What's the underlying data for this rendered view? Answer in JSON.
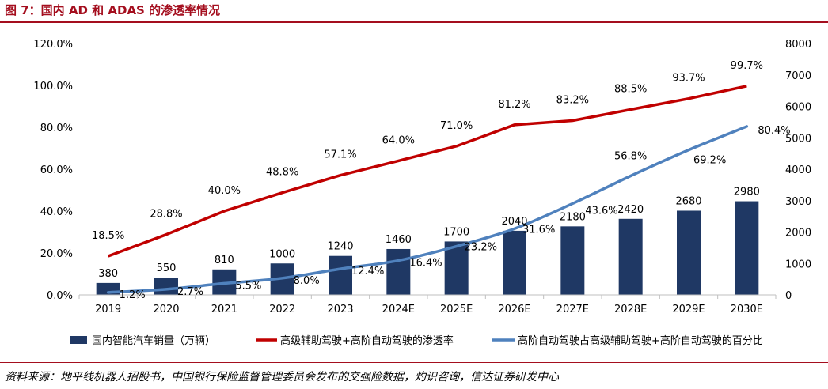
{
  "figure": {
    "title": "图 7：国内 AD 和 ADAS 的渗透率情况",
    "source": "资料来源：地平线机器人招股书，中国银行保险监督管理委员会发布的交强险数据，灼识咨询，信达证券研发中心"
  },
  "chart_data": {
    "type": "bar",
    "categories": [
      "2019",
      "2020",
      "2021",
      "2022",
      "2023",
      "2024E",
      "2025E",
      "2026E",
      "2027E",
      "2028E",
      "2029E",
      "2030E"
    ],
    "y_left": {
      "min": 0,
      "max": 120,
      "ticks": [
        "0.0%",
        "20.0%",
        "40.0%",
        "60.0%",
        "80.0%",
        "100.0%",
        "120.0%"
      ]
    },
    "y_right": {
      "min": 0,
      "max": 8000,
      "ticks": [
        "0",
        "1000",
        "2000",
        "3000",
        "4000",
        "5000",
        "6000",
        "7000",
        "8000"
      ]
    },
    "legend": [
      "国内智能汽车销量（万辆）",
      "高级辅助驾驶+高阶自动驾驶的渗透率",
      "高阶自动驾驶占高级辅助驾驶+高阶自动驾驶的百分比"
    ],
    "series": [
      {
        "name": "国内智能汽车销量（万辆）",
        "type": "bar",
        "axis": "right",
        "color": "#1f3864",
        "values": [
          380,
          550,
          810,
          1000,
          1240,
          1460,
          1700,
          2040,
          2180,
          2420,
          2680,
          2980
        ],
        "labels": [
          "380",
          "550",
          "810",
          "1000",
          "1240",
          "1460",
          "1700",
          "2040",
          "2180",
          "2420",
          "2680",
          "2980"
        ]
      },
      {
        "name": "高级辅助驾驶+高阶自动驾驶的渗透率",
        "type": "line",
        "axis": "left",
        "color": "#c00000",
        "values": [
          18.5,
          28.8,
          40.0,
          48.8,
          57.1,
          64.0,
          71.0,
          81.2,
          83.2,
          88.5,
          93.7,
          99.7
        ],
        "labels": [
          "18.5%",
          "28.8%",
          "40.0%",
          "48.8%",
          "57.1%",
          "64.0%",
          "71.0%",
          "81.2%",
          "83.2%",
          "88.5%",
          "93.7%",
          "99.7%"
        ]
      },
      {
        "name": "高阶自动驾驶占高级辅助驾驶+高阶自动驾驶的百分比",
        "type": "line",
        "axis": "left",
        "color": "#4f81bd",
        "values": [
          1.2,
          2.7,
          5.5,
          8.0,
          12.4,
          16.4,
          23.2,
          31.6,
          43.6,
          56.8,
          69.2,
          80.4
        ],
        "labels": [
          "1.2%",
          "2.7%",
          "5.5%",
          "8.0%",
          "12.4%",
          "16.4%",
          "23.2%",
          "31.6%",
          "43.6%",
          "56.8%",
          "69.2%",
          "80.4%"
        ]
      }
    ]
  }
}
